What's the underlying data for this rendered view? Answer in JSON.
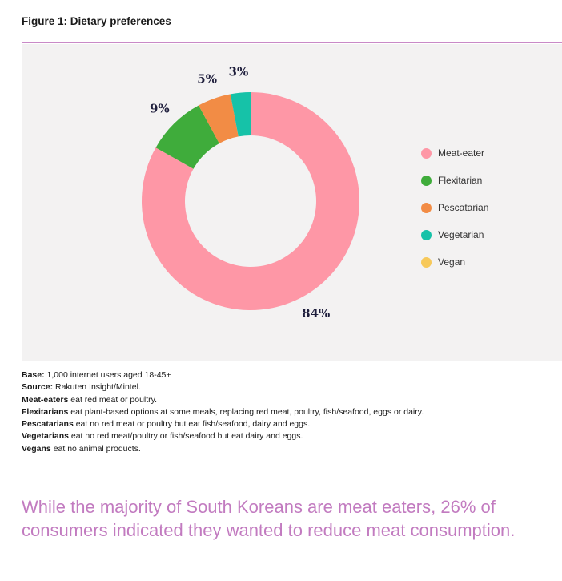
{
  "figure_title": "Figure 1: Dietary preferences",
  "colors": {
    "rule": "#c98ac7",
    "panel_background": "#f3f2f2",
    "headline": "#c27bc0"
  },
  "chart_data": {
    "type": "pie",
    "donut": true,
    "categories": [
      "Meat-eater",
      "Flexitarian",
      "Pescatarian",
      "Vegetarian",
      "Vegan"
    ],
    "values": [
      84,
      9,
      5,
      3,
      0
    ],
    "value_labels": [
      "84%",
      "9%",
      "5%",
      "3%",
      ""
    ],
    "colors": [
      "#fe97a6",
      "#3fac3b",
      "#f28c45",
      "#16c2a8",
      "#f7c95a"
    ],
    "legend_position": "right",
    "start_angle": "12 o'clock, clockwise"
  },
  "notes": [
    {
      "bold": "Base:",
      "text": " 1,000 internet users aged 18-45+"
    },
    {
      "bold": "Source:",
      "text": " Rakuten Insight/Mintel."
    },
    {
      "bold": "Meat-eaters",
      "text": " eat red meat or poultry."
    },
    {
      "bold": "Flexitarians",
      "text": " eat plant-based options at some meals, replacing red meat, poultry, fish/seafood, eggs or dairy."
    },
    {
      "bold": "Pescatarians",
      "text": " eat no red meat or poultry but eat fish/seafood, dairy and eggs."
    },
    {
      "bold": "Vegetarians",
      "text": " eat no red meat/poultry or fish/seafood but eat dairy and eggs."
    },
    {
      "bold": "Vegans",
      "text": " eat no animal products."
    }
  ],
  "headline": "While the majority of South Koreans are meat eaters, 26% of consumers indicated they wanted to reduce meat consumption."
}
